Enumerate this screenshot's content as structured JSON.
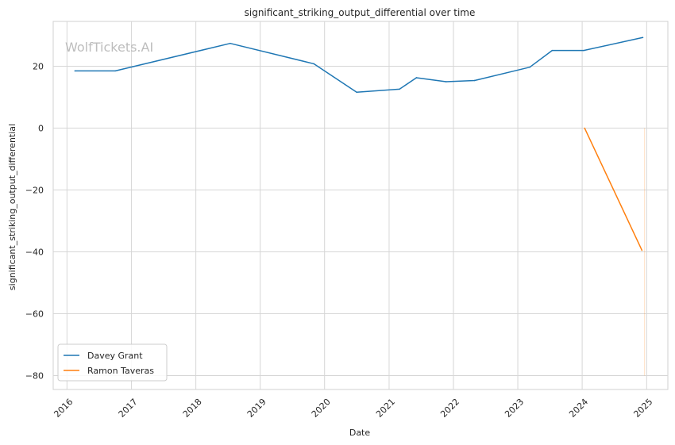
{
  "chart_data": {
    "type": "line",
    "title": "significant_striking_output_differential over time",
    "xlabel": "Date",
    "ylabel": "significant_striking_output_differential",
    "watermark": "WolfTickets.AI",
    "x_ticks": [
      "2016",
      "2017",
      "2018",
      "2019",
      "2020",
      "2021",
      "2022",
      "2023",
      "2024",
      "2025"
    ],
    "y_ticks": [
      20,
      0,
      -20,
      -40,
      -60,
      -80
    ],
    "xlim": [
      "2015-10-15",
      "2025-05-01"
    ],
    "ylim": [
      -84.5,
      34.5
    ],
    "grid": true,
    "legend_position": "lower-left",
    "series": [
      {
        "name": "Davey Grant",
        "color": "#1f77b4",
        "points": [
          [
            "2016-02-15",
            18.5
          ],
          [
            "2016-10-01",
            18.5
          ],
          [
            "2018-07-15",
            27.4
          ],
          [
            "2019-11-01",
            20.8
          ],
          [
            "2020-07-01",
            11.6
          ],
          [
            "2021-03-01",
            12.6
          ],
          [
            "2021-06-05",
            16.3
          ],
          [
            "2021-11-20",
            15.0
          ],
          [
            "2022-05-01",
            15.4
          ],
          [
            "2023-03-10",
            19.7
          ],
          [
            "2023-07-15",
            25.1
          ],
          [
            "2024-01-10",
            25.1
          ],
          [
            "2024-12-10",
            29.3
          ]
        ]
      },
      {
        "name": "Ramon Taveras",
        "color": "#ff7f0e",
        "points": [
          [
            "2024-01-15",
            0.0
          ],
          [
            "2024-12-05",
            -39.5
          ]
        ]
      }
    ],
    "faint_vertical_line": {
      "x": "2024-12-20",
      "y_from": 0,
      "y_to": -80,
      "color": "#ff7f0e"
    }
  }
}
